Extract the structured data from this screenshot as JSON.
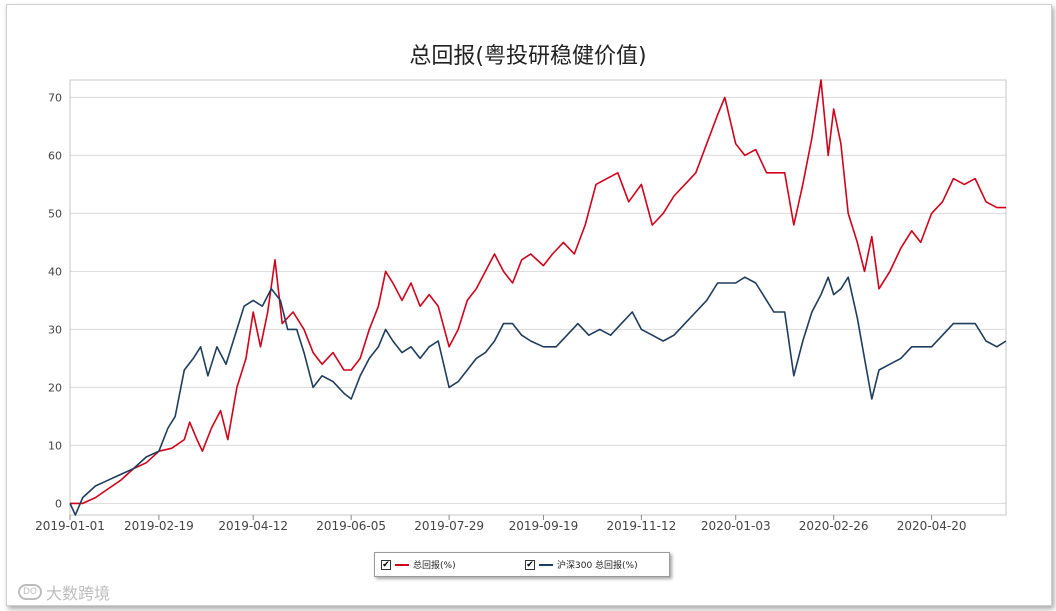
{
  "chart_data": {
    "type": "line",
    "title": "总回报(粤投研稳健价值)",
    "xlabel": "",
    "ylabel": "",
    "ylim": [
      0,
      73
    ],
    "xlim": [
      "2019-01-01",
      "2020-05-31"
    ],
    "grid": true,
    "legend_position": "bottom",
    "x_ticks": [
      "2019-01-01",
      "2019-02-19",
      "2019-04-12",
      "2019-06-05",
      "2019-07-29",
      "2019-09-19",
      "2019-11-12",
      "2020-01-03",
      "2020-02-26",
      "2020-04-20"
    ],
    "y_ticks": [
      0,
      10,
      20,
      30,
      40,
      50,
      60,
      70
    ],
    "series": [
      {
        "name": "总回报(%)",
        "color": "#d0021b",
        "points": [
          [
            "2019-01-01",
            0
          ],
          [
            "2019-01-08",
            0
          ],
          [
            "2019-01-15",
            1
          ],
          [
            "2019-01-22",
            2.5
          ],
          [
            "2019-01-29",
            4
          ],
          [
            "2019-02-05",
            6
          ],
          [
            "2019-02-12",
            7
          ],
          [
            "2019-02-19",
            9
          ],
          [
            "2019-02-26",
            9.5
          ],
          [
            "2019-03-05",
            11
          ],
          [
            "2019-03-08",
            14
          ],
          [
            "2019-03-12",
            11
          ],
          [
            "2019-03-15",
            9
          ],
          [
            "2019-03-20",
            13
          ],
          [
            "2019-03-25",
            16
          ],
          [
            "2019-03-29",
            11
          ],
          [
            "2019-04-03",
            20
          ],
          [
            "2019-04-08",
            25
          ],
          [
            "2019-04-12",
            33
          ],
          [
            "2019-04-16",
            27
          ],
          [
            "2019-04-20",
            33
          ],
          [
            "2019-04-24",
            42
          ],
          [
            "2019-04-28",
            31
          ],
          [
            "2019-05-04",
            33
          ],
          [
            "2019-05-10",
            30
          ],
          [
            "2019-05-15",
            26
          ],
          [
            "2019-05-20",
            24
          ],
          [
            "2019-05-26",
            26
          ],
          [
            "2019-06-01",
            23
          ],
          [
            "2019-06-05",
            23
          ],
          [
            "2019-06-10",
            25
          ],
          [
            "2019-06-15",
            30
          ],
          [
            "2019-06-20",
            34
          ],
          [
            "2019-06-24",
            40
          ],
          [
            "2019-06-28",
            38
          ],
          [
            "2019-07-03",
            35
          ],
          [
            "2019-07-08",
            38
          ],
          [
            "2019-07-13",
            34
          ],
          [
            "2019-07-18",
            36
          ],
          [
            "2019-07-23",
            34
          ],
          [
            "2019-07-29",
            27
          ],
          [
            "2019-08-03",
            30
          ],
          [
            "2019-08-08",
            35
          ],
          [
            "2019-08-13",
            37
          ],
          [
            "2019-08-18",
            40
          ],
          [
            "2019-08-23",
            43
          ],
          [
            "2019-08-28",
            40
          ],
          [
            "2019-09-02",
            38
          ],
          [
            "2019-09-07",
            42
          ],
          [
            "2019-09-12",
            43
          ],
          [
            "2019-09-19",
            41
          ],
          [
            "2019-09-24",
            43
          ],
          [
            "2019-09-30",
            45
          ],
          [
            "2019-10-06",
            43
          ],
          [
            "2019-10-12",
            48
          ],
          [
            "2019-10-18",
            55
          ],
          [
            "2019-10-24",
            56
          ],
          [
            "2019-10-30",
            57
          ],
          [
            "2019-11-05",
            52
          ],
          [
            "2019-11-12",
            55
          ],
          [
            "2019-11-18",
            48
          ],
          [
            "2019-11-24",
            50
          ],
          [
            "2019-11-30",
            53
          ],
          [
            "2019-12-06",
            55
          ],
          [
            "2019-12-12",
            57
          ],
          [
            "2019-12-18",
            62
          ],
          [
            "2019-12-24",
            67
          ],
          [
            "2019-12-28",
            70
          ],
          [
            "2020-01-03",
            62
          ],
          [
            "2020-01-08",
            60
          ],
          [
            "2020-01-14",
            61
          ],
          [
            "2020-01-20",
            57
          ],
          [
            "2020-01-24",
            57
          ],
          [
            "2020-01-30",
            57
          ],
          [
            "2020-02-04",
            48
          ],
          [
            "2020-02-09",
            55
          ],
          [
            "2020-02-14",
            63
          ],
          [
            "2020-02-19",
            73
          ],
          [
            "2020-02-23",
            60
          ],
          [
            "2020-02-26",
            68
          ],
          [
            "2020-03-01",
            62
          ],
          [
            "2020-03-05",
            50
          ],
          [
            "2020-03-10",
            45
          ],
          [
            "2020-03-14",
            40
          ],
          [
            "2020-03-18",
            46
          ],
          [
            "2020-03-22",
            37
          ],
          [
            "2020-03-28",
            40
          ],
          [
            "2020-04-03",
            44
          ],
          [
            "2020-04-09",
            47
          ],
          [
            "2020-04-14",
            45
          ],
          [
            "2020-04-20",
            50
          ],
          [
            "2020-04-26",
            52
          ],
          [
            "2020-05-02",
            56
          ],
          [
            "2020-05-08",
            55
          ],
          [
            "2020-05-14",
            56
          ],
          [
            "2020-05-20",
            52
          ],
          [
            "2020-05-26",
            51
          ],
          [
            "2020-05-31",
            51
          ]
        ]
      },
      {
        "name": "沪深300 总回报(%)",
        "color": "#1f3d5c",
        "points": [
          [
            "2019-01-01",
            0
          ],
          [
            "2019-01-04",
            -2
          ],
          [
            "2019-01-08",
            1
          ],
          [
            "2019-01-15",
            3
          ],
          [
            "2019-01-22",
            4
          ],
          [
            "2019-01-29",
            5
          ],
          [
            "2019-02-05",
            6
          ],
          [
            "2019-02-12",
            8
          ],
          [
            "2019-02-19",
            9
          ],
          [
            "2019-02-24",
            13
          ],
          [
            "2019-02-28",
            15
          ],
          [
            "2019-03-05",
            23
          ],
          [
            "2019-03-10",
            25
          ],
          [
            "2019-03-14",
            27
          ],
          [
            "2019-03-18",
            22
          ],
          [
            "2019-03-23",
            27
          ],
          [
            "2019-03-28",
            24
          ],
          [
            "2019-04-03",
            30
          ],
          [
            "2019-04-07",
            34
          ],
          [
            "2019-04-12",
            35
          ],
          [
            "2019-04-17",
            34
          ],
          [
            "2019-04-22",
            37
          ],
          [
            "2019-04-27",
            35
          ],
          [
            "2019-05-01",
            30
          ],
          [
            "2019-05-06",
            30
          ],
          [
            "2019-05-10",
            26
          ],
          [
            "2019-05-15",
            20
          ],
          [
            "2019-05-20",
            22
          ],
          [
            "2019-05-26",
            21
          ],
          [
            "2019-06-01",
            19
          ],
          [
            "2019-06-05",
            18
          ],
          [
            "2019-06-10",
            22
          ],
          [
            "2019-06-15",
            25
          ],
          [
            "2019-06-20",
            27
          ],
          [
            "2019-06-24",
            30
          ],
          [
            "2019-06-28",
            28
          ],
          [
            "2019-07-03",
            26
          ],
          [
            "2019-07-08",
            27
          ],
          [
            "2019-07-13",
            25
          ],
          [
            "2019-07-18",
            27
          ],
          [
            "2019-07-23",
            28
          ],
          [
            "2019-07-29",
            20
          ],
          [
            "2019-08-03",
            21
          ],
          [
            "2019-08-08",
            23
          ],
          [
            "2019-08-13",
            25
          ],
          [
            "2019-08-18",
            26
          ],
          [
            "2019-08-23",
            28
          ],
          [
            "2019-08-28",
            31
          ],
          [
            "2019-09-02",
            31
          ],
          [
            "2019-09-07",
            29
          ],
          [
            "2019-09-12",
            28
          ],
          [
            "2019-09-19",
            27
          ],
          [
            "2019-09-26",
            27
          ],
          [
            "2019-10-02",
            29
          ],
          [
            "2019-10-08",
            31
          ],
          [
            "2019-10-14",
            29
          ],
          [
            "2019-10-20",
            30
          ],
          [
            "2019-10-26",
            29
          ],
          [
            "2019-11-01",
            31
          ],
          [
            "2019-11-07",
            33
          ],
          [
            "2019-11-12",
            30
          ],
          [
            "2019-11-18",
            29
          ],
          [
            "2019-11-24",
            28
          ],
          [
            "2019-11-30",
            29
          ],
          [
            "2019-12-06",
            31
          ],
          [
            "2019-12-12",
            33
          ],
          [
            "2019-12-18",
            35
          ],
          [
            "2019-12-24",
            38
          ],
          [
            "2019-12-30",
            38
          ],
          [
            "2020-01-03",
            38
          ],
          [
            "2020-01-08",
            39
          ],
          [
            "2020-01-14",
            38
          ],
          [
            "2020-01-20",
            35
          ],
          [
            "2020-01-24",
            33
          ],
          [
            "2020-01-30",
            33
          ],
          [
            "2020-02-04",
            22
          ],
          [
            "2020-02-09",
            28
          ],
          [
            "2020-02-14",
            33
          ],
          [
            "2020-02-19",
            36
          ],
          [
            "2020-02-23",
            39
          ],
          [
            "2020-02-26",
            36
          ],
          [
            "2020-03-01",
            37
          ],
          [
            "2020-03-05",
            39
          ],
          [
            "2020-03-10",
            32
          ],
          [
            "2020-03-14",
            25
          ],
          [
            "2020-03-18",
            18
          ],
          [
            "2020-03-22",
            23
          ],
          [
            "2020-03-28",
            24
          ],
          [
            "2020-04-03",
            25
          ],
          [
            "2020-04-09",
            27
          ],
          [
            "2020-04-14",
            27
          ],
          [
            "2020-04-20",
            27
          ],
          [
            "2020-04-26",
            29
          ],
          [
            "2020-05-02",
            31
          ],
          [
            "2020-05-08",
            31
          ],
          [
            "2020-05-14",
            31
          ],
          [
            "2020-05-20",
            28
          ],
          [
            "2020-05-26",
            27
          ],
          [
            "2020-05-31",
            28
          ]
        ]
      }
    ]
  },
  "legend": {
    "items": [
      {
        "label": "总回报(%)",
        "checked": true,
        "check_glyph": "✔"
      },
      {
        "label": "沪深300 总回报(%)",
        "checked": true,
        "check_glyph": "✔"
      }
    ]
  },
  "watermark": {
    "text": "大数跨境",
    "logo_text": "DO"
  }
}
